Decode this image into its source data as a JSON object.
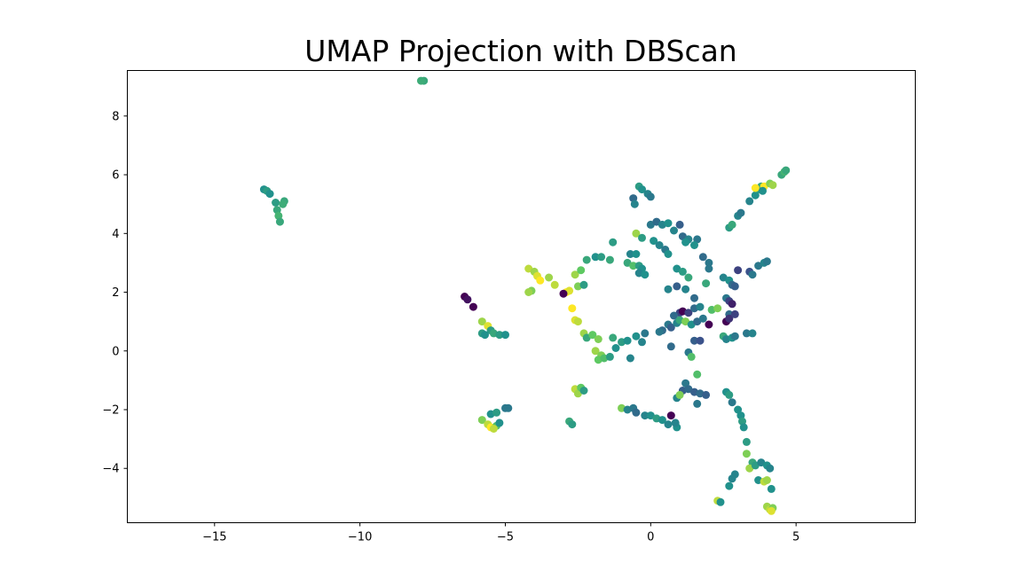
{
  "chart_data": {
    "type": "scatter",
    "title": "UMAP Projection with DBScan",
    "xlabel": "",
    "ylabel": "",
    "xlim": [
      -18.0,
      9.1
    ],
    "ylim": [
      -5.85,
      9.55
    ],
    "xticks": [
      -15,
      -10,
      -5,
      0,
      5
    ],
    "xtick_labels": [
      "−15",
      "−10",
      "−5",
      "0",
      "5"
    ],
    "yticks": [
      -4,
      -2,
      0,
      2,
      4,
      6,
      8
    ],
    "ytick_labels": [
      "−4",
      "−2",
      "0",
      "2",
      "4",
      "6",
      "8"
    ],
    "grid": false,
    "legend": "none",
    "colormap": "viridis",
    "color_scale": [
      "#440154",
      "#3b528b",
      "#21918c",
      "#5ec962",
      "#fde725"
    ],
    "points": [
      {
        "x": -7.8,
        "y": 9.2,
        "c": 0.6
      },
      {
        "x": -7.9,
        "y": 9.2,
        "c": 0.62
      },
      {
        "x": -13.3,
        "y": 5.5,
        "c": 0.5
      },
      {
        "x": -13.2,
        "y": 5.45,
        "c": 0.55
      },
      {
        "x": -13.1,
        "y": 5.35,
        "c": 0.5
      },
      {
        "x": -12.9,
        "y": 5.05,
        "c": 0.55
      },
      {
        "x": -12.6,
        "y": 5.1,
        "c": 0.6
      },
      {
        "x": -12.65,
        "y": 5.0,
        "c": 0.62
      },
      {
        "x": -12.85,
        "y": 4.8,
        "c": 0.6
      },
      {
        "x": -12.8,
        "y": 4.6,
        "c": 0.65
      },
      {
        "x": -12.75,
        "y": 4.4,
        "c": 0.6
      },
      {
        "x": -6.4,
        "y": 1.85,
        "c": 0.0
      },
      {
        "x": -6.3,
        "y": 1.75,
        "c": 0.05
      },
      {
        "x": -6.1,
        "y": 1.5,
        "c": 0.0
      },
      {
        "x": -5.8,
        "y": 1.0,
        "c": 0.85
      },
      {
        "x": -5.6,
        "y": 0.85,
        "c": 0.95
      },
      {
        "x": -5.5,
        "y": 0.7,
        "c": 0.55
      },
      {
        "x": -5.8,
        "y": 0.6,
        "c": 0.55
      },
      {
        "x": -5.7,
        "y": 0.55,
        "c": 0.5
      },
      {
        "x": -5.4,
        "y": 0.6,
        "c": 0.6
      },
      {
        "x": -5.2,
        "y": 0.55,
        "c": 0.55
      },
      {
        "x": -5.0,
        "y": 0.55,
        "c": 0.5
      },
      {
        "x": -5.5,
        "y": -2.15,
        "c": 0.5
      },
      {
        "x": -5.3,
        "y": -2.1,
        "c": 0.55
      },
      {
        "x": -5.0,
        "y": -1.95,
        "c": 0.4
      },
      {
        "x": -4.9,
        "y": -1.95,
        "c": 0.4
      },
      {
        "x": -5.8,
        "y": -2.35,
        "c": 0.8
      },
      {
        "x": -5.6,
        "y": -2.5,
        "c": 0.9
      },
      {
        "x": -5.5,
        "y": -2.6,
        "c": 1.0
      },
      {
        "x": -5.3,
        "y": -2.55,
        "c": 0.7
      },
      {
        "x": -5.2,
        "y": -2.45,
        "c": 0.5
      },
      {
        "x": -5.4,
        "y": -2.65,
        "c": 0.9
      },
      {
        "x": -4.2,
        "y": 2.8,
        "c": 0.9
      },
      {
        "x": -4.0,
        "y": 2.7,
        "c": 0.85
      },
      {
        "x": -3.9,
        "y": 2.55,
        "c": 0.95
      },
      {
        "x": -3.8,
        "y": 2.4,
        "c": 1.0
      },
      {
        "x": -3.5,
        "y": 2.5,
        "c": 0.85
      },
      {
        "x": -3.3,
        "y": 2.25,
        "c": 0.9
      },
      {
        "x": -4.1,
        "y": 2.05,
        "c": 0.8
      },
      {
        "x": -4.2,
        "y": 2.0,
        "c": 0.85
      },
      {
        "x": -2.9,
        "y": 2.0,
        "c": 1.0
      },
      {
        "x": -2.8,
        "y": 2.05,
        "c": 0.95
      },
      {
        "x": -3.0,
        "y": 1.95,
        "c": 0.0
      },
      {
        "x": -2.6,
        "y": 2.6,
        "c": 0.85
      },
      {
        "x": -2.4,
        "y": 2.75,
        "c": 0.75
      },
      {
        "x": -2.5,
        "y": 2.2,
        "c": 0.8
      },
      {
        "x": -2.3,
        "y": 2.25,
        "c": 0.55
      },
      {
        "x": -2.2,
        "y": 3.1,
        "c": 0.6
      },
      {
        "x": -1.9,
        "y": 3.2,
        "c": 0.5
      },
      {
        "x": -1.7,
        "y": 3.2,
        "c": 0.55
      },
      {
        "x": -1.4,
        "y": 3.1,
        "c": 0.6
      },
      {
        "x": -1.3,
        "y": 3.7,
        "c": 0.55
      },
      {
        "x": -2.7,
        "y": 1.45,
        "c": 1.0
      },
      {
        "x": -2.6,
        "y": 1.05,
        "c": 0.95
      },
      {
        "x": -2.5,
        "y": 1.0,
        "c": 0.9
      },
      {
        "x": -2.3,
        "y": 0.6,
        "c": 0.85
      },
      {
        "x": -2.2,
        "y": 0.45,
        "c": 0.6
      },
      {
        "x": -2.0,
        "y": 0.55,
        "c": 0.75
      },
      {
        "x": -1.8,
        "y": 0.4,
        "c": 0.8
      },
      {
        "x": -1.9,
        "y": 0.0,
        "c": 0.85
      },
      {
        "x": -1.7,
        "y": -0.15,
        "c": 0.8
      },
      {
        "x": -1.8,
        "y": -0.3,
        "c": 0.75
      },
      {
        "x": -1.6,
        "y": -0.25,
        "c": 0.7
      },
      {
        "x": -1.4,
        "y": -0.2,
        "c": 0.55
      },
      {
        "x": -1.2,
        "y": 0.1,
        "c": 0.5
      },
      {
        "x": -1.0,
        "y": 0.3,
        "c": 0.55
      },
      {
        "x": -0.8,
        "y": 0.35,
        "c": 0.5
      },
      {
        "x": -0.7,
        "y": -0.25,
        "c": 0.45
      },
      {
        "x": -0.5,
        "y": 0.5,
        "c": 0.5
      },
      {
        "x": -0.3,
        "y": 0.3,
        "c": 0.45
      },
      {
        "x": -0.2,
        "y": 0.6,
        "c": 0.4
      },
      {
        "x": -1.3,
        "y": 0.45,
        "c": 0.6
      },
      {
        "x": -2.6,
        "y": -1.3,
        "c": 0.9
      },
      {
        "x": -2.5,
        "y": -1.45,
        "c": 0.85
      },
      {
        "x": -2.4,
        "y": -1.25,
        "c": 0.75
      },
      {
        "x": -2.3,
        "y": -1.35,
        "c": 0.55
      },
      {
        "x": -2.8,
        "y": -2.4,
        "c": 0.6
      },
      {
        "x": -2.7,
        "y": -2.5,
        "c": 0.55
      },
      {
        "x": -1.0,
        "y": -1.95,
        "c": 0.8
      },
      {
        "x": -0.8,
        "y": -2.0,
        "c": 0.45
      },
      {
        "x": -0.6,
        "y": -1.95,
        "c": 0.4
      },
      {
        "x": -0.5,
        "y": -2.1,
        "c": 0.35
      },
      {
        "x": -0.2,
        "y": -2.2,
        "c": 0.45
      },
      {
        "x": 0.0,
        "y": -2.2,
        "c": 0.5
      },
      {
        "x": 0.2,
        "y": -2.3,
        "c": 0.55
      },
      {
        "x": 0.4,
        "y": -2.35,
        "c": 0.5
      },
      {
        "x": 0.6,
        "y": -2.5,
        "c": 0.45
      },
      {
        "x": 0.7,
        "y": -2.2,
        "c": 0.0
      },
      {
        "x": 0.9,
        "y": -2.6,
        "c": 0.5
      },
      {
        "x": 0.85,
        "y": -2.45,
        "c": 0.45
      },
      {
        "x": -0.4,
        "y": 5.6,
        "c": 0.55
      },
      {
        "x": -0.3,
        "y": 5.5,
        "c": 0.5
      },
      {
        "x": -0.1,
        "y": 5.35,
        "c": 0.45
      },
      {
        "x": 0.0,
        "y": 5.25,
        "c": 0.4
      },
      {
        "x": -0.6,
        "y": 5.2,
        "c": 0.35
      },
      {
        "x": -0.55,
        "y": 5.0,
        "c": 0.45
      },
      {
        "x": 0.0,
        "y": 4.3,
        "c": 0.4
      },
      {
        "x": 0.2,
        "y": 4.4,
        "c": 0.35
      },
      {
        "x": 0.4,
        "y": 4.3,
        "c": 0.45
      },
      {
        "x": 0.6,
        "y": 4.35,
        "c": 0.5
      },
      {
        "x": 0.8,
        "y": 4.1,
        "c": 0.45
      },
      {
        "x": 1.0,
        "y": 4.3,
        "c": 0.3
      },
      {
        "x": 1.1,
        "y": 3.9,
        "c": 0.35
      },
      {
        "x": 1.3,
        "y": 3.8,
        "c": 0.45
      },
      {
        "x": 1.6,
        "y": 3.8,
        "c": 0.4
      },
      {
        "x": 1.5,
        "y": 3.6,
        "c": 0.5
      },
      {
        "x": 1.2,
        "y": 3.7,
        "c": 0.5
      },
      {
        "x": -0.5,
        "y": 4.0,
        "c": 0.85
      },
      {
        "x": -0.3,
        "y": 3.85,
        "c": 0.55
      },
      {
        "x": 0.1,
        "y": 3.75,
        "c": 0.5
      },
      {
        "x": 0.3,
        "y": 3.6,
        "c": 0.45
      },
      {
        "x": 0.5,
        "y": 3.45,
        "c": 0.4
      },
      {
        "x": 0.6,
        "y": 3.3,
        "c": 0.5
      },
      {
        "x": -0.7,
        "y": 3.3,
        "c": 0.45
      },
      {
        "x": -0.5,
        "y": 3.3,
        "c": 0.5
      },
      {
        "x": -0.8,
        "y": 3.0,
        "c": 0.6
      },
      {
        "x": -0.6,
        "y": 2.9,
        "c": 0.7
      },
      {
        "x": -0.4,
        "y": 2.9,
        "c": 0.55
      },
      {
        "x": -0.3,
        "y": 2.8,
        "c": 0.5
      },
      {
        "x": -0.4,
        "y": 2.65,
        "c": 0.45
      },
      {
        "x": -0.2,
        "y": 2.6,
        "c": 0.5
      },
      {
        "x": 0.9,
        "y": 2.8,
        "c": 0.5
      },
      {
        "x": 1.1,
        "y": 2.7,
        "c": 0.55
      },
      {
        "x": 1.3,
        "y": 2.5,
        "c": 0.6
      },
      {
        "x": 0.6,
        "y": 2.1,
        "c": 0.45
      },
      {
        "x": 0.9,
        "y": 2.2,
        "c": 0.3
      },
      {
        "x": 1.2,
        "y": 2.1,
        "c": 0.45
      },
      {
        "x": 1.5,
        "y": 1.8,
        "c": 0.35
      },
      {
        "x": 1.9,
        "y": 2.3,
        "c": 0.6
      },
      {
        "x": 2.0,
        "y": 2.8,
        "c": 0.4
      },
      {
        "x": 1.8,
        "y": 3.2,
        "c": 0.35
      },
      {
        "x": 2.0,
        "y": 3.0,
        "c": 0.4
      },
      {
        "x": 1.0,
        "y": 1.3,
        "c": 0.2
      },
      {
        "x": 1.1,
        "y": 1.35,
        "c": 0.0
      },
      {
        "x": 1.3,
        "y": 1.3,
        "c": 0.2
      },
      {
        "x": 0.8,
        "y": 1.2,
        "c": 0.35
      },
      {
        "x": 0.6,
        "y": 0.9,
        "c": 0.4
      },
      {
        "x": 0.7,
        "y": 0.8,
        "c": 0.3
      },
      {
        "x": 0.9,
        "y": 0.95,
        "c": 0.45
      },
      {
        "x": 1.0,
        "y": 1.05,
        "c": 0.6
      },
      {
        "x": 1.2,
        "y": 1.0,
        "c": 0.8
      },
      {
        "x": 1.4,
        "y": 0.9,
        "c": 0.5
      },
      {
        "x": 1.6,
        "y": 1.0,
        "c": 0.35
      },
      {
        "x": 1.8,
        "y": 1.1,
        "c": 0.4
      },
      {
        "x": 2.0,
        "y": 0.9,
        "c": 0.0
      },
      {
        "x": 1.5,
        "y": 1.45,
        "c": 0.35
      },
      {
        "x": 1.7,
        "y": 1.5,
        "c": 0.45
      },
      {
        "x": 2.1,
        "y": 1.4,
        "c": 0.7
      },
      {
        "x": 2.3,
        "y": 1.45,
        "c": 0.8
      },
      {
        "x": 0.4,
        "y": 0.7,
        "c": 0.35
      },
      {
        "x": 0.3,
        "y": 0.65,
        "c": 0.4
      },
      {
        "x": 0.7,
        "y": 0.15,
        "c": 0.35
      },
      {
        "x": 1.5,
        "y": 0.35,
        "c": 0.3
      },
      {
        "x": 1.7,
        "y": 0.35,
        "c": 0.25
      },
      {
        "x": 1.3,
        "y": -0.05,
        "c": 0.4
      },
      {
        "x": 1.4,
        "y": -0.2,
        "c": 0.7
      },
      {
        "x": 1.6,
        "y": -0.8,
        "c": 0.7
      },
      {
        "x": 1.2,
        "y": -1.1,
        "c": 0.4
      },
      {
        "x": 1.1,
        "y": -1.35,
        "c": 0.3
      },
      {
        "x": 1.3,
        "y": -1.3,
        "c": 0.35
      },
      {
        "x": 1.5,
        "y": -1.4,
        "c": 0.3
      },
      {
        "x": 1.7,
        "y": -1.45,
        "c": 0.35
      },
      {
        "x": 1.9,
        "y": -1.5,
        "c": 0.3
      },
      {
        "x": 0.9,
        "y": -1.6,
        "c": 0.45
      },
      {
        "x": 1.0,
        "y": -1.5,
        "c": 0.8
      },
      {
        "x": 1.6,
        "y": -1.8,
        "c": 0.4
      },
      {
        "x": 2.6,
        "y": 1.8,
        "c": 0.4
      },
      {
        "x": 2.7,
        "y": 1.7,
        "c": 0.2
      },
      {
        "x": 2.8,
        "y": 1.6,
        "c": 0.1
      },
      {
        "x": 2.7,
        "y": 1.25,
        "c": 0.35
      },
      {
        "x": 2.6,
        "y": 1.0,
        "c": 0.0
      },
      {
        "x": 2.7,
        "y": 1.1,
        "c": 0.15
      },
      {
        "x": 2.9,
        "y": 1.25,
        "c": 0.2
      },
      {
        "x": 2.5,
        "y": 0.5,
        "c": 0.6
      },
      {
        "x": 2.6,
        "y": 0.4,
        "c": 0.45
      },
      {
        "x": 2.8,
        "y": 0.45,
        "c": 0.5
      },
      {
        "x": 2.9,
        "y": 0.5,
        "c": 0.4
      },
      {
        "x": 3.3,
        "y": 0.6,
        "c": 0.4
      },
      {
        "x": 3.5,
        "y": 0.6,
        "c": 0.45
      },
      {
        "x": 2.5,
        "y": 2.5,
        "c": 0.45
      },
      {
        "x": 2.7,
        "y": 2.4,
        "c": 0.5
      },
      {
        "x": 2.8,
        "y": 2.25,
        "c": 0.35
      },
      {
        "x": 2.9,
        "y": 2.2,
        "c": 0.3
      },
      {
        "x": 3.0,
        "y": 2.75,
        "c": 0.2
      },
      {
        "x": 3.4,
        "y": 2.7,
        "c": 0.25
      },
      {
        "x": 3.5,
        "y": 2.6,
        "c": 0.4
      },
      {
        "x": 3.7,
        "y": 2.9,
        "c": 0.4
      },
      {
        "x": 3.9,
        "y": 3.0,
        "c": 0.45
      },
      {
        "x": 4.0,
        "y": 3.05,
        "c": 0.4
      },
      {
        "x": 2.7,
        "y": 4.2,
        "c": 0.55
      },
      {
        "x": 2.8,
        "y": 4.3,
        "c": 0.6
      },
      {
        "x": 3.0,
        "y": 4.6,
        "c": 0.45
      },
      {
        "x": 3.1,
        "y": 4.7,
        "c": 0.4
      },
      {
        "x": 3.4,
        "y": 5.1,
        "c": 0.45
      },
      {
        "x": 3.6,
        "y": 5.3,
        "c": 0.5
      },
      {
        "x": 3.7,
        "y": 5.5,
        "c": 0.55
      },
      {
        "x": 3.8,
        "y": 5.6,
        "c": 0.6
      },
      {
        "x": 3.6,
        "y": 5.55,
        "c": 1.0
      },
      {
        "x": 3.9,
        "y": 5.6,
        "c": 1.0
      },
      {
        "x": 3.85,
        "y": 5.45,
        "c": 0.5
      },
      {
        "x": 4.1,
        "y": 5.7,
        "c": 0.8
      },
      {
        "x": 4.2,
        "y": 5.65,
        "c": 0.85
      },
      {
        "x": 4.5,
        "y": 6.0,
        "c": 0.6
      },
      {
        "x": 4.6,
        "y": 6.1,
        "c": 0.65
      },
      {
        "x": 4.65,
        "y": 6.15,
        "c": 0.6
      },
      {
        "x": 2.6,
        "y": -1.4,
        "c": 0.5
      },
      {
        "x": 2.7,
        "y": -1.5,
        "c": 0.55
      },
      {
        "x": 2.8,
        "y": -1.75,
        "c": 0.4
      },
      {
        "x": 3.0,
        "y": -2.0,
        "c": 0.5
      },
      {
        "x": 3.1,
        "y": -2.2,
        "c": 0.5
      },
      {
        "x": 3.15,
        "y": -2.4,
        "c": 0.55
      },
      {
        "x": 3.2,
        "y": -2.6,
        "c": 0.5
      },
      {
        "x": 3.3,
        "y": -3.1,
        "c": 0.55
      },
      {
        "x": 3.3,
        "y": -3.5,
        "c": 0.8
      },
      {
        "x": 3.5,
        "y": -3.8,
        "c": 0.6
      },
      {
        "x": 3.4,
        "y": -4.0,
        "c": 0.85
      },
      {
        "x": 3.6,
        "y": -3.9,
        "c": 0.55
      },
      {
        "x": 3.8,
        "y": -3.8,
        "c": 0.45
      },
      {
        "x": 4.0,
        "y": -3.9,
        "c": 0.5
      },
      {
        "x": 4.1,
        "y": -4.0,
        "c": 0.45
      },
      {
        "x": 3.7,
        "y": -4.4,
        "c": 0.5
      },
      {
        "x": 3.9,
        "y": -4.45,
        "c": 0.9
      },
      {
        "x": 4.0,
        "y": -4.4,
        "c": 0.85
      },
      {
        "x": 4.15,
        "y": -4.7,
        "c": 0.5
      },
      {
        "x": 2.9,
        "y": -4.2,
        "c": 0.45
      },
      {
        "x": 2.8,
        "y": -4.35,
        "c": 0.45
      },
      {
        "x": 2.7,
        "y": -4.6,
        "c": 0.5
      },
      {
        "x": 2.3,
        "y": -5.1,
        "c": 0.9
      },
      {
        "x": 2.4,
        "y": -5.15,
        "c": 0.5
      },
      {
        "x": 4.0,
        "y": -5.3,
        "c": 0.85
      },
      {
        "x": 4.1,
        "y": -5.4,
        "c": 0.9
      },
      {
        "x": 4.2,
        "y": -5.35,
        "c": 0.8
      },
      {
        "x": 4.15,
        "y": -5.45,
        "c": 0.95
      }
    ]
  }
}
